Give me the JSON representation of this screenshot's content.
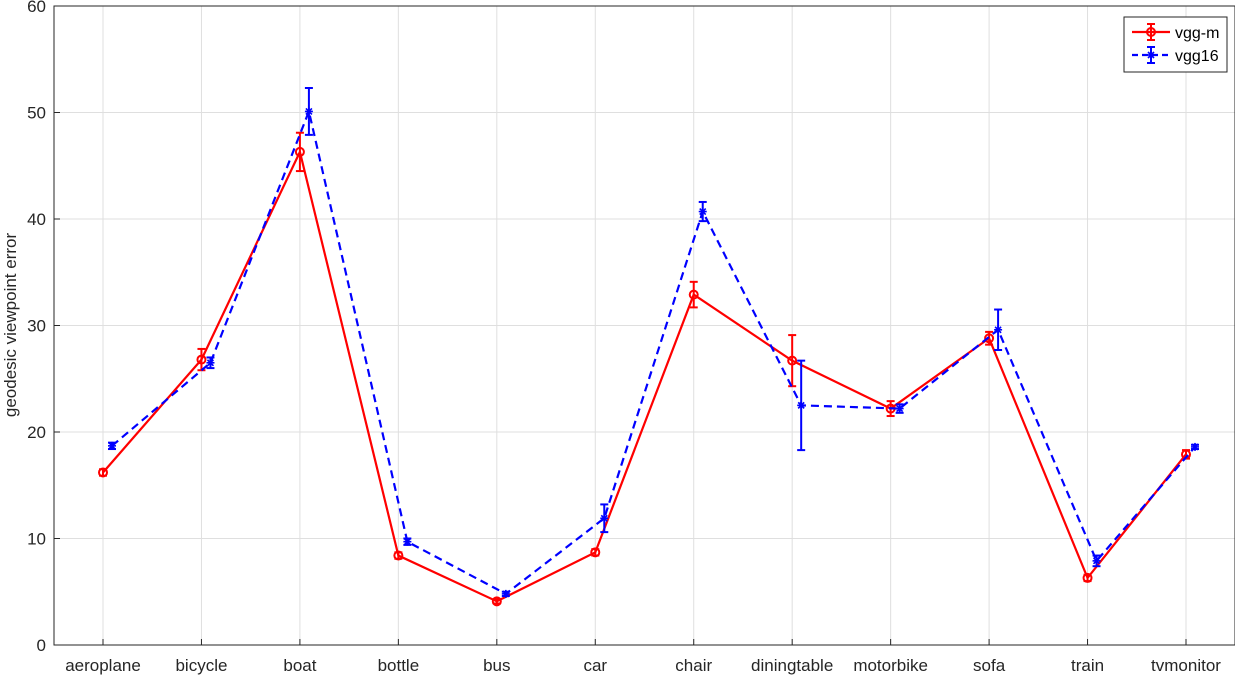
{
  "chart_data": {
    "type": "line",
    "title": "",
    "xlabel": "",
    "ylabel": "geodesic viewpoint error",
    "ylim": [
      0,
      60
    ],
    "yticks": [
      0,
      10,
      20,
      30,
      40,
      50,
      60
    ],
    "grid": true,
    "legend_position": "top-right",
    "categories": [
      "aeroplane",
      "bicycle",
      "boat",
      "bottle",
      "bus",
      "car",
      "chair",
      "diningtable",
      "motorbike",
      "sofa",
      "train",
      "tvmonitor"
    ],
    "series": [
      {
        "name": "vgg-m",
        "color": "#ff0000",
        "line_style": "solid",
        "marker": "circle",
        "values": [
          16.2,
          26.8,
          46.3,
          8.4,
          4.1,
          8.7,
          32.9,
          26.7,
          22.2,
          28.8,
          6.3,
          17.9
        ],
        "errors": [
          0.3,
          1.0,
          1.8,
          0.3,
          0.2,
          0.3,
          1.2,
          2.4,
          0.7,
          0.6,
          0.3,
          0.4
        ]
      },
      {
        "name": "vgg16",
        "color": "#0000ff",
        "line_style": "dashed",
        "marker": "star",
        "values": [
          18.7,
          26.5,
          50.1,
          9.7,
          4.8,
          11.9,
          40.7,
          22.5,
          22.2,
          29.6,
          7.9,
          18.6
        ],
        "errors": [
          0.3,
          0.5,
          2.2,
          0.3,
          0.2,
          1.3,
          0.9,
          4.2,
          0.4,
          1.9,
          0.5,
          0.2
        ]
      }
    ]
  }
}
